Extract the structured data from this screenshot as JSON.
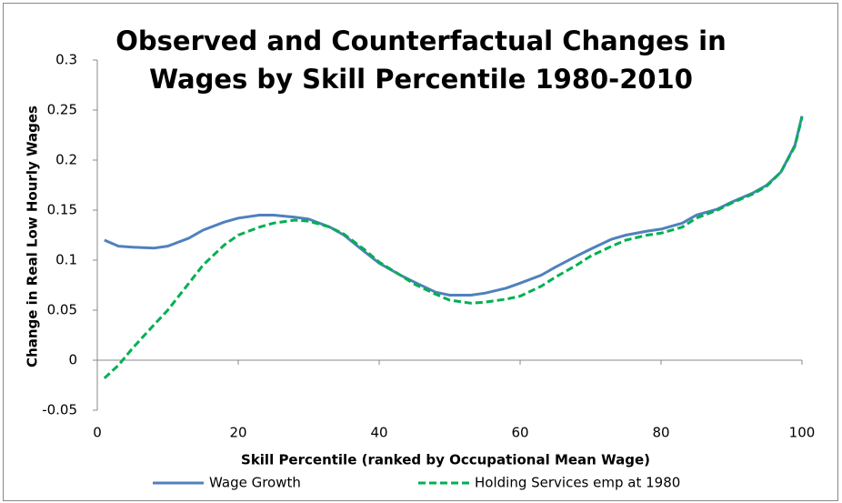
{
  "chart_data": {
    "type": "line",
    "title": "Observed and Counterfactual Changes in Wages by Skill Percentile 1980-2010",
    "x_label": "Skill Percentile (ranked by Occupational Mean Wage)",
    "y_label": "Change in Real Low Hourly Wages",
    "x": [
      1,
      3,
      5,
      8,
      10,
      13,
      15,
      18,
      20,
      23,
      25,
      28,
      30,
      33,
      35,
      38,
      40,
      43,
      45,
      48,
      50,
      53,
      55,
      58,
      60,
      63,
      65,
      68,
      70,
      73,
      75,
      78,
      80,
      83,
      85,
      88,
      90,
      93,
      95,
      97,
      99,
      100
    ],
    "series": [
      {
        "name": "Wage Growth",
        "color": "#4f81bd",
        "dashed": false,
        "values": [
          0.12,
          0.114,
          0.113,
          0.112,
          0.114,
          0.122,
          0.13,
          0.138,
          0.142,
          0.145,
          0.145,
          0.143,
          0.141,
          0.133,
          0.125,
          0.108,
          0.097,
          0.085,
          0.078,
          0.068,
          0.065,
          0.065,
          0.067,
          0.072,
          0.077,
          0.085,
          0.093,
          0.104,
          0.111,
          0.121,
          0.125,
          0.129,
          0.131,
          0.137,
          0.145,
          0.151,
          0.158,
          0.167,
          0.175,
          0.188,
          0.215,
          0.244
        ]
      },
      {
        "name": "Holding Services emp at 1980",
        "color": "#00b050",
        "dashed": true,
        "values": [
          -0.018,
          -0.005,
          0.012,
          0.035,
          0.05,
          0.077,
          0.095,
          0.115,
          0.125,
          0.133,
          0.137,
          0.14,
          0.139,
          0.133,
          0.126,
          0.11,
          0.098,
          0.085,
          0.076,
          0.066,
          0.06,
          0.057,
          0.058,
          0.061,
          0.064,
          0.074,
          0.083,
          0.095,
          0.104,
          0.114,
          0.12,
          0.125,
          0.127,
          0.133,
          0.142,
          0.15,
          0.157,
          0.166,
          0.174,
          0.188,
          0.214,
          0.243
        ]
      }
    ],
    "xlim": [
      0,
      100
    ],
    "xticks": [
      0,
      20,
      40,
      60,
      80,
      100
    ],
    "ylim": [
      -0.05,
      0.3
    ],
    "yticks": [
      -0.05,
      0,
      0.05,
      0.1,
      0.15,
      0.2,
      0.25,
      0.3
    ],
    "grid": false,
    "legend": "bottom"
  }
}
